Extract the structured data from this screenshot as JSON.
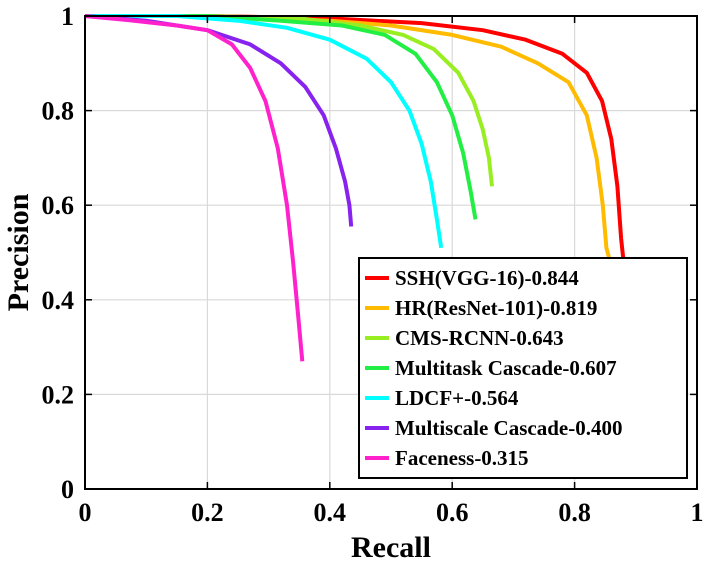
{
  "chart_data": {
    "type": "line",
    "title": "",
    "xlabel": "Recall",
    "ylabel": "Precision",
    "xlim": [
      0,
      1
    ],
    "ylim": [
      0,
      1
    ],
    "grid": true,
    "legend_position": "bottom-right",
    "x_ticks": [
      0,
      0.2,
      0.4,
      0.6,
      0.8,
      1
    ],
    "x_tick_labels": [
      "0",
      "0.2",
      "0.4",
      "0.6",
      "0.8",
      "1"
    ],
    "y_ticks": [
      0,
      0.2,
      0.4,
      0.6,
      0.8,
      1
    ],
    "y_tick_labels": [
      "0",
      "0.2",
      "0.4",
      "0.6",
      "0.8",
      "1"
    ],
    "series": [
      {
        "name": "SSH(VGG-16)-0.844",
        "color": "#ff0000",
        "x": [
          0,
          0.2,
          0.4,
          0.55,
          0.65,
          0.72,
          0.78,
          0.82,
          0.845,
          0.86,
          0.87,
          0.876,
          0.88
        ],
        "y": [
          1,
          1,
          0.995,
          0.985,
          0.97,
          0.95,
          0.92,
          0.88,
          0.82,
          0.74,
          0.64,
          0.53,
          0.48
        ]
      },
      {
        "name": "HR(ResNet-101)-0.819",
        "color": "#ffbb00",
        "x": [
          0,
          0.2,
          0.4,
          0.5,
          0.6,
          0.68,
          0.74,
          0.79,
          0.82,
          0.836,
          0.846,
          0.852,
          0.856
        ],
        "y": [
          1,
          1,
          0.99,
          0.98,
          0.96,
          0.935,
          0.9,
          0.86,
          0.79,
          0.7,
          0.6,
          0.51,
          0.49
        ]
      },
      {
        "name": "CMS-RCNN-0.643",
        "color": "#99ee22",
        "x": [
          0,
          0.2,
          0.35,
          0.45,
          0.52,
          0.57,
          0.61,
          0.635,
          0.65,
          0.66,
          0.665
        ],
        "y": [
          1,
          1,
          0.995,
          0.98,
          0.96,
          0.93,
          0.88,
          0.82,
          0.76,
          0.7,
          0.64
        ]
      },
      {
        "name": "Multitask Cascade-0.607",
        "color": "#22ee44",
        "x": [
          0,
          0.2,
          0.32,
          0.42,
          0.49,
          0.54,
          0.575,
          0.6,
          0.618,
          0.63,
          0.638
        ],
        "y": [
          1,
          1,
          0.99,
          0.98,
          0.96,
          0.92,
          0.86,
          0.79,
          0.71,
          0.63,
          0.57
        ]
      },
      {
        "name": "LDCF+-0.564",
        "color": "#00ffff",
        "x": [
          0,
          0.15,
          0.25,
          0.33,
          0.4,
          0.46,
          0.5,
          0.53,
          0.55,
          0.565,
          0.575,
          0.582
        ],
        "y": [
          1,
          1,
          0.99,
          0.975,
          0.95,
          0.91,
          0.86,
          0.8,
          0.73,
          0.65,
          0.57,
          0.51
        ]
      },
      {
        "name": "Multiscale Cascade-0.400",
        "color": "#8822ee",
        "x": [
          0,
          0.1,
          0.2,
          0.27,
          0.32,
          0.36,
          0.39,
          0.41,
          0.425,
          0.432,
          0.435
        ],
        "y": [
          1,
          0.99,
          0.97,
          0.94,
          0.9,
          0.85,
          0.79,
          0.72,
          0.65,
          0.6,
          0.555
        ]
      },
      {
        "name": "Faceness-0.315",
        "color": "#ff22cc",
        "x": [
          0,
          0.08,
          0.15,
          0.2,
          0.24,
          0.27,
          0.295,
          0.315,
          0.33,
          0.34,
          0.348,
          0.355
        ],
        "y": [
          1,
          0.99,
          0.98,
          0.97,
          0.94,
          0.89,
          0.82,
          0.72,
          0.6,
          0.48,
          0.37,
          0.27
        ]
      }
    ]
  }
}
